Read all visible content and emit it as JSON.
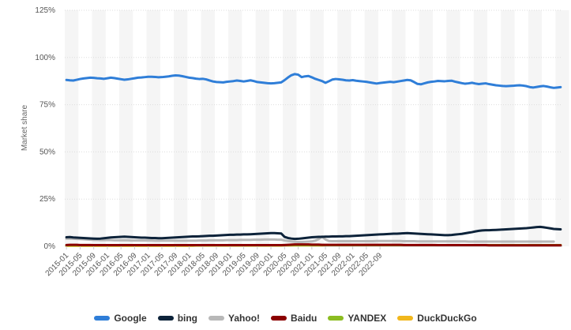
{
  "chart_data": {
    "type": "line",
    "title": "",
    "xlabel": "",
    "ylabel": "Market share",
    "ylim": [
      0,
      125
    ],
    "y_ticks": [
      "0%",
      "25%",
      "50%",
      "75%",
      "100%",
      "125%"
    ],
    "y_tick_values": [
      0,
      25,
      50,
      75,
      100,
      125
    ],
    "x_start": "2015-01",
    "x_end": "2022-12",
    "x_tick_labels": [
      "2015-01",
      "2015-05",
      "2015-09",
      "2016-01",
      "2016-05",
      "2016-09",
      "2017-01",
      "2017-05",
      "2017-09",
      "2018-01",
      "2018-05",
      "2018-09",
      "2019-01",
      "2019-05",
      "2019-09",
      "2020-01",
      "2020-05",
      "2020-09",
      "2021-01",
      "2021-05",
      "2021-09",
      "2022-01",
      "2022-05",
      "2022-09"
    ],
    "grid": "alternating vertical bands",
    "legend_position": "bottom",
    "series": [
      {
        "name": "Google",
        "color": "#2f7ed8",
        "values": [
          88.1,
          87.9,
          87.8,
          88.2,
          88.6,
          88.9,
          89.1,
          89.3,
          89.2,
          89.0,
          88.9,
          88.7,
          89.0,
          89.3,
          89.1,
          88.8,
          88.5,
          88.2,
          88.4,
          88.7,
          89.0,
          89.3,
          89.4,
          89.6,
          89.8,
          89.8,
          89.7,
          89.5,
          89.6,
          89.8,
          90.0,
          90.3,
          90.5,
          90.4,
          90.1,
          89.7,
          89.3,
          89.1,
          88.8,
          88.6,
          88.7,
          88.4,
          87.8,
          87.3,
          87.0,
          86.9,
          86.8,
          87.1,
          87.3,
          87.5,
          87.8,
          87.6,
          87.3,
          87.6,
          87.9,
          87.5,
          87.0,
          86.8,
          86.6,
          86.4,
          86.3,
          86.4,
          86.6,
          86.8,
          88.0,
          89.4,
          90.6,
          91.2,
          90.9,
          89.6,
          90.0,
          90.2,
          89.5,
          88.7,
          88.1,
          87.5,
          86.6,
          87.4,
          88.3,
          88.6,
          88.4,
          88.2,
          87.9,
          87.8,
          88.0,
          87.7,
          87.5,
          87.3,
          87.1,
          86.8,
          86.5,
          86.2,
          86.5,
          86.7,
          86.9,
          87.1,
          86.9,
          87.2,
          87.5,
          87.8,
          88.1,
          87.9,
          87.0,
          86.0,
          85.8,
          86.3,
          86.8,
          87.1,
          87.3,
          87.6,
          87.5,
          87.4,
          87.6,
          87.7,
          87.2,
          86.8,
          86.4,
          86.1,
          86.3,
          86.6,
          86.2,
          85.9,
          86.1,
          86.3,
          85.9,
          85.6,
          85.3,
          85.1,
          84.9,
          84.8,
          84.9,
          85.0,
          85.2,
          85.3,
          85.1,
          84.8,
          84.3,
          84.1,
          84.4,
          84.7,
          84.9,
          84.6,
          84.2,
          83.9,
          84.1,
          84.3
        ]
      },
      {
        "name": "bing",
        "color": "#0d233a",
        "values": [
          4.8,
          4.9,
          4.7,
          4.6,
          4.5,
          4.4,
          4.3,
          4.2,
          4.1,
          4.0,
          4.1,
          4.3,
          4.5,
          4.7,
          4.8,
          4.9,
          5.0,
          5.1,
          5.0,
          4.9,
          4.8,
          4.7,
          4.6,
          4.6,
          4.5,
          4.4,
          4.4,
          4.3,
          4.3,
          4.4,
          4.5,
          4.6,
          4.7,
          4.8,
          4.9,
          5.0,
          5.1,
          5.2,
          5.2,
          5.3,
          5.4,
          5.5,
          5.6,
          5.6,
          5.7,
          5.8,
          5.9,
          6.0,
          6.1,
          6.1,
          6.2,
          6.2,
          6.3,
          6.3,
          6.4,
          6.5,
          6.6,
          6.7,
          6.8,
          6.9,
          7.0,
          7.0,
          6.9,
          6.8,
          5.0,
          4.4,
          4.1,
          3.9,
          4.0,
          4.2,
          4.4,
          4.6,
          4.8,
          4.9,
          5.0,
          5.0,
          5.1,
          5.1,
          5.2,
          5.2,
          5.3,
          5.3,
          5.4,
          5.4,
          5.5,
          5.6,
          5.7,
          5.8,
          5.9,
          6.0,
          6.1,
          6.2,
          6.3,
          6.4,
          6.5,
          6.6,
          6.7,
          6.7,
          6.8,
          6.9,
          7.0,
          6.9,
          6.8,
          6.7,
          6.6,
          6.5,
          6.4,
          6.3,
          6.2,
          6.1,
          6.0,
          5.9,
          5.9,
          6.0,
          6.2,
          6.4,
          6.6,
          6.9,
          7.2,
          7.5,
          7.9,
          8.2,
          8.4,
          8.5,
          8.5,
          8.6,
          8.7,
          8.8,
          8.9,
          9.0,
          9.1,
          9.2,
          9.3,
          9.4,
          9.5,
          9.6,
          9.8,
          10.0,
          10.2,
          10.3,
          10.1,
          9.8,
          9.5,
          9.2,
          9.1,
          9.0
        ]
      },
      {
        "name": "Yahoo!",
        "color": "#b8b8b8",
        "values": [
          4.0,
          4.1,
          4.0,
          3.9,
          3.8,
          3.7,
          3.6,
          3.5,
          3.4,
          3.4,
          3.3,
          3.3,
          3.3,
          3.3,
          3.2,
          3.2,
          3.2,
          3.2,
          3.2,
          3.1,
          3.1,
          3.1,
          3.1,
          3.1,
          3.1,
          3.1,
          3.0,
          3.0,
          3.0,
          3.0,
          3.0,
          3.0,
          3.0,
          3.0,
          3.0,
          3.0,
          3.0,
          3.0,
          3.0,
          3.1,
          3.1,
          3.1,
          3.2,
          3.2,
          3.2,
          3.2,
          3.2,
          3.3,
          3.3,
          3.3,
          3.3,
          3.4,
          3.4,
          3.4,
          3.4,
          3.5,
          3.5,
          3.5,
          3.6,
          3.6,
          3.6,
          3.6,
          3.5,
          3.5,
          3.1,
          2.8,
          2.6,
          2.4,
          2.3,
          2.3,
          2.4,
          2.5,
          2.6,
          3.0,
          3.8,
          5.2,
          3.6,
          2.8,
          2.7,
          2.7,
          2.7,
          2.7,
          2.7,
          2.7,
          2.7,
          2.7,
          2.7,
          2.7,
          2.7,
          2.7,
          2.7,
          2.8,
          2.8,
          2.8,
          2.8,
          2.8,
          2.8,
          2.8,
          2.8,
          2.7,
          2.7,
          2.7,
          2.7,
          2.6,
          2.6,
          2.6,
          2.6,
          2.6,
          2.6,
          2.6,
          2.6,
          2.6,
          2.6,
          2.6,
          2.6,
          2.6,
          2.6,
          2.6,
          2.5,
          2.5,
          2.5,
          2.5,
          2.5,
          2.5,
          2.5,
          2.5,
          2.5,
          2.5,
          2.5,
          2.5,
          2.5,
          2.5,
          2.5,
          2.5,
          2.5,
          2.5,
          2.5,
          2.5,
          2.5,
          2.5,
          2.5,
          2.5,
          2.5,
          2.5
        ]
      },
      {
        "name": "Baidu",
        "color": "#8b0000",
        "values": [
          0.7,
          0.8,
          0.8,
          0.8,
          0.7,
          0.7,
          0.7,
          0.7,
          0.6,
          0.6,
          0.6,
          0.6,
          0.6,
          0.6,
          0.6,
          0.6,
          0.6,
          0.6,
          0.6,
          0.6,
          0.6,
          0.6,
          0.6,
          0.6,
          0.6,
          0.6,
          0.6,
          0.6,
          0.6,
          0.6,
          0.6,
          0.6,
          0.6,
          0.6,
          0.6,
          0.6,
          0.6,
          0.6,
          0.6,
          0.6,
          0.6,
          0.6,
          0.6,
          0.6,
          0.6,
          0.6,
          0.6,
          0.6,
          0.6,
          0.6,
          0.6,
          0.6,
          0.6,
          0.6,
          0.6,
          0.6,
          0.6,
          0.6,
          0.6,
          0.6,
          0.6,
          0.6,
          0.6,
          0.6,
          0.7,
          0.8,
          0.9,
          1.0,
          1.0,
          1.0,
          1.0,
          1.0,
          0.9,
          0.9,
          0.9,
          0.8,
          0.8,
          0.8,
          0.8,
          0.8,
          0.8,
          0.8,
          0.8,
          0.8,
          0.8,
          0.8,
          0.8,
          0.8,
          0.8,
          0.8,
          0.8,
          0.8,
          0.8,
          0.8,
          0.8,
          0.8,
          0.8,
          0.8,
          0.8,
          0.7,
          0.7,
          0.7,
          0.7,
          0.7,
          0.7,
          0.7,
          0.7,
          0.7,
          0.7,
          0.6,
          0.6,
          0.6,
          0.6,
          0.6,
          0.6,
          0.6,
          0.6,
          0.6,
          0.6,
          0.6,
          0.6,
          0.6,
          0.6,
          0.6,
          0.5,
          0.5,
          0.5,
          0.5,
          0.5,
          0.5,
          0.5,
          0.5,
          0.5,
          0.5,
          0.5,
          0.5,
          0.5,
          0.5,
          0.5,
          0.5,
          0.5,
          0.5,
          0.5,
          0.5,
          0.5,
          0.5
        ]
      },
      {
        "name": "YANDEX",
        "color": "#8bbc21",
        "values": [
          0.5,
          0.5,
          0.5,
          0.5,
          0.5,
          0.5,
          0.5,
          0.5,
          0.5,
          0.5,
          0.5,
          0.5,
          0.5,
          0.5,
          0.5,
          0.5,
          0.5,
          0.5,
          0.5,
          0.5,
          0.5,
          0.5,
          0.5,
          0.5,
          0.5,
          0.5,
          0.5,
          0.5,
          0.5,
          0.5,
          0.5,
          0.5,
          0.5,
          0.5,
          0.5,
          0.5,
          0.5,
          0.5,
          0.5,
          0.5,
          0.5,
          0.5,
          0.5,
          0.5,
          0.5,
          0.5,
          0.5,
          0.5,
          0.5,
          0.5,
          0.5,
          0.5,
          0.5,
          0.5,
          0.5,
          0.5,
          0.5,
          0.5,
          0.5,
          0.5,
          0.5,
          0.5,
          0.5,
          0.5,
          0.6,
          0.6,
          0.6,
          0.6,
          0.6,
          0.6,
          0.6,
          0.6,
          0.6,
          0.6,
          0.6,
          0.6,
          0.6,
          0.6,
          0.6,
          0.6,
          0.6,
          0.6,
          0.6,
          0.6,
          0.6,
          0.6,
          0.6,
          0.6,
          0.6,
          0.6,
          0.6,
          0.6,
          0.6,
          0.6,
          0.6,
          0.6,
          0.6,
          0.6,
          0.6,
          0.6,
          0.6,
          0.6,
          0.6,
          0.6,
          0.6,
          0.6,
          0.6,
          0.6,
          0.6,
          0.6,
          0.6,
          0.6,
          0.6,
          0.6,
          0.6,
          0.6,
          0.6,
          0.6,
          0.6,
          0.6,
          0.6,
          0.6,
          0.6,
          0.6,
          0.6,
          0.6,
          0.6,
          0.6,
          0.6,
          0.6,
          0.6,
          0.6,
          0.6,
          0.6,
          0.6,
          0.6,
          0.6,
          0.6,
          0.6,
          0.6,
          0.6,
          0.6,
          0.6,
          0.6,
          0.6,
          0.6
        ]
      },
      {
        "name": "DuckDuckGo",
        "color": "#f1b71c",
        "values": [
          0.3,
          0.3,
          0.3,
          0.3,
          0.3,
          0.3,
          0.3,
          0.3,
          0.3,
          0.3,
          0.3,
          0.3,
          0.3,
          0.3,
          0.3,
          0.3,
          0.3,
          0.3,
          0.3,
          0.3,
          0.3,
          0.3,
          0.3,
          0.3,
          0.3,
          0.3,
          0.3,
          0.3,
          0.3,
          0.3,
          0.3,
          0.3,
          0.3,
          0.3,
          0.3,
          0.3,
          0.3,
          0.3,
          0.4,
          0.4,
          0.4,
          0.4,
          0.4,
          0.4,
          0.4,
          0.4,
          0.4,
          0.4,
          0.4,
          0.4,
          0.4,
          0.4,
          0.4,
          0.4,
          0.4,
          0.4,
          0.4,
          0.4,
          0.4,
          0.4,
          0.4,
          0.4,
          0.4,
          0.4,
          0.5,
          0.5,
          0.5,
          0.5,
          0.5,
          0.5,
          0.5,
          0.5,
          0.5,
          0.5,
          0.5,
          0.5,
          0.6,
          0.6,
          0.6,
          0.6,
          0.6,
          0.6,
          0.6,
          0.6,
          0.6,
          0.6,
          0.6,
          0.6,
          0.6,
          0.6,
          0.6,
          0.6,
          0.6,
          0.6,
          0.6,
          0.6,
          0.6,
          0.6,
          0.6,
          0.6,
          0.6,
          0.6,
          0.6,
          0.6,
          0.6,
          0.6,
          0.6,
          0.6,
          0.6,
          0.6,
          0.6,
          0.6,
          0.6,
          0.6,
          0.6,
          0.6,
          0.6,
          0.6,
          0.6,
          0.6,
          0.6,
          0.6,
          0.6,
          0.6,
          0.6,
          0.6,
          0.6,
          0.6,
          0.6,
          0.6,
          0.6,
          0.6,
          0.6,
          0.6,
          0.6,
          0.6,
          0.6,
          0.6,
          0.6,
          0.6,
          0.6,
          0.6,
          0.6,
          0.6,
          0.6,
          0.6
        ]
      }
    ]
  }
}
